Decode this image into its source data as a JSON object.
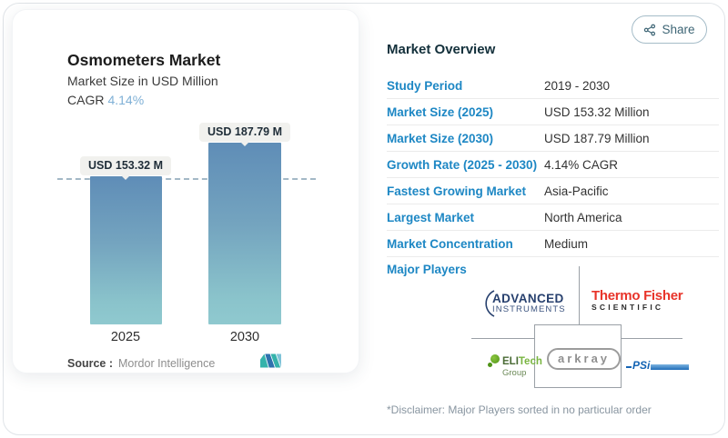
{
  "share": {
    "label": "Share"
  },
  "chart_card": {
    "title": "Osmometers Market",
    "subtitle": "Market Size in USD Million",
    "cagr_label": "CAGR",
    "cagr_value": "4.14%",
    "source_label": "Source :",
    "source_value": "Mordor Intelligence"
  },
  "chart_data": {
    "type": "bar",
    "title": "Osmometers Market",
    "subtitle": "Market Size in USD Million",
    "unit": "USD Million",
    "categories": [
      "2025",
      "2030"
    ],
    "values": [
      153.32,
      187.79
    ],
    "value_labels": [
      "USD 153.32 M",
      "USD 187.79 M"
    ],
    "ylim": [
      0,
      187.79
    ],
    "reference_line": 153.32,
    "bar_colors": {
      "top": "#5f8db7",
      "bottom": "#8fc9cf"
    },
    "legend": "none",
    "grid": "off"
  },
  "overview": {
    "heading": "Market Overview",
    "rows": [
      {
        "label": "Study Period",
        "value": "2019 - 2030"
      },
      {
        "label": "Market Size (2025)",
        "value": "USD 153.32 Million"
      },
      {
        "label": "Market Size (2030)",
        "value": "USD 187.79 Million"
      },
      {
        "label": "Growth Rate (2025 - 2030)",
        "value": "4.14% CAGR"
      },
      {
        "label": "Fastest Growing Market",
        "value": "Asia-Pacific"
      },
      {
        "label": "Largest Market",
        "value": "North America"
      },
      {
        "label": "Market Concentration",
        "value": "Medium"
      }
    ],
    "major_players_label": "Major Players",
    "disclaimer": "*Disclaimer: Major Players sorted in no particular order"
  },
  "players_logos": {
    "advanced_line1": "ADVANCED",
    "advanced_line2": "INSTRUMENTS",
    "thermo_line1": "Thermo Fisher",
    "thermo_line2": "SCIENTIFIC",
    "elitech_part1": "ELI",
    "elitech_part2": "Tech",
    "elitech_line2": "Group",
    "arkray": "arkray",
    "psi": "PSi"
  },
  "colors": {
    "accent_blue": "#1d87c4",
    "cagr_blue": "#7fb0d6",
    "heading_navy": "#13303b",
    "bar_top": "#5f8db7",
    "bar_bottom": "#8fc9cf",
    "share_teal": "#3c6474",
    "divider": "#ebebeb"
  }
}
